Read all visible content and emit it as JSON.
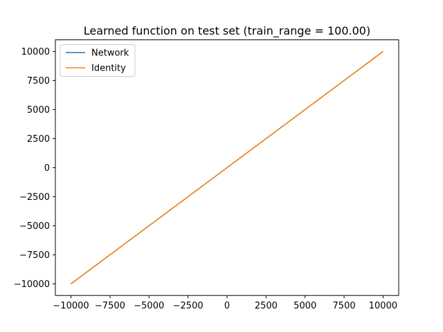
{
  "chart_data": {
    "type": "line",
    "title": "Learned function on test set (train_range = 100.00)",
    "xlabel": "",
    "ylabel": "",
    "xlim": [
      -11000,
      11000
    ],
    "ylim": [
      -11000,
      11000
    ],
    "xticks": [
      -10000,
      -7500,
      -5000,
      -2500,
      0,
      2500,
      5000,
      7500,
      10000
    ],
    "yticks": [
      -10000,
      -7500,
      -5000,
      -2500,
      0,
      2500,
      5000,
      7500,
      10000
    ],
    "xtick_labels": [
      "−10000",
      "−7500",
      "−5000",
      "−2500",
      "0",
      "2500",
      "5000",
      "7500",
      "10000"
    ],
    "ytick_labels": [
      "−10000",
      "−7500",
      "−5000",
      "−2500",
      "0",
      "2500",
      "5000",
      "7500",
      "10000"
    ],
    "grid": false,
    "legend_position": "top-left",
    "series": [
      {
        "name": "Network",
        "color": "#1f77b4",
        "x": [
          -10000,
          10000
        ],
        "y": [
          -10000,
          10000
        ]
      },
      {
        "name": "Identity",
        "color": "#ff7f0e",
        "x": [
          -10000,
          10000
        ],
        "y": [
          -10000,
          10000
        ]
      }
    ]
  }
}
